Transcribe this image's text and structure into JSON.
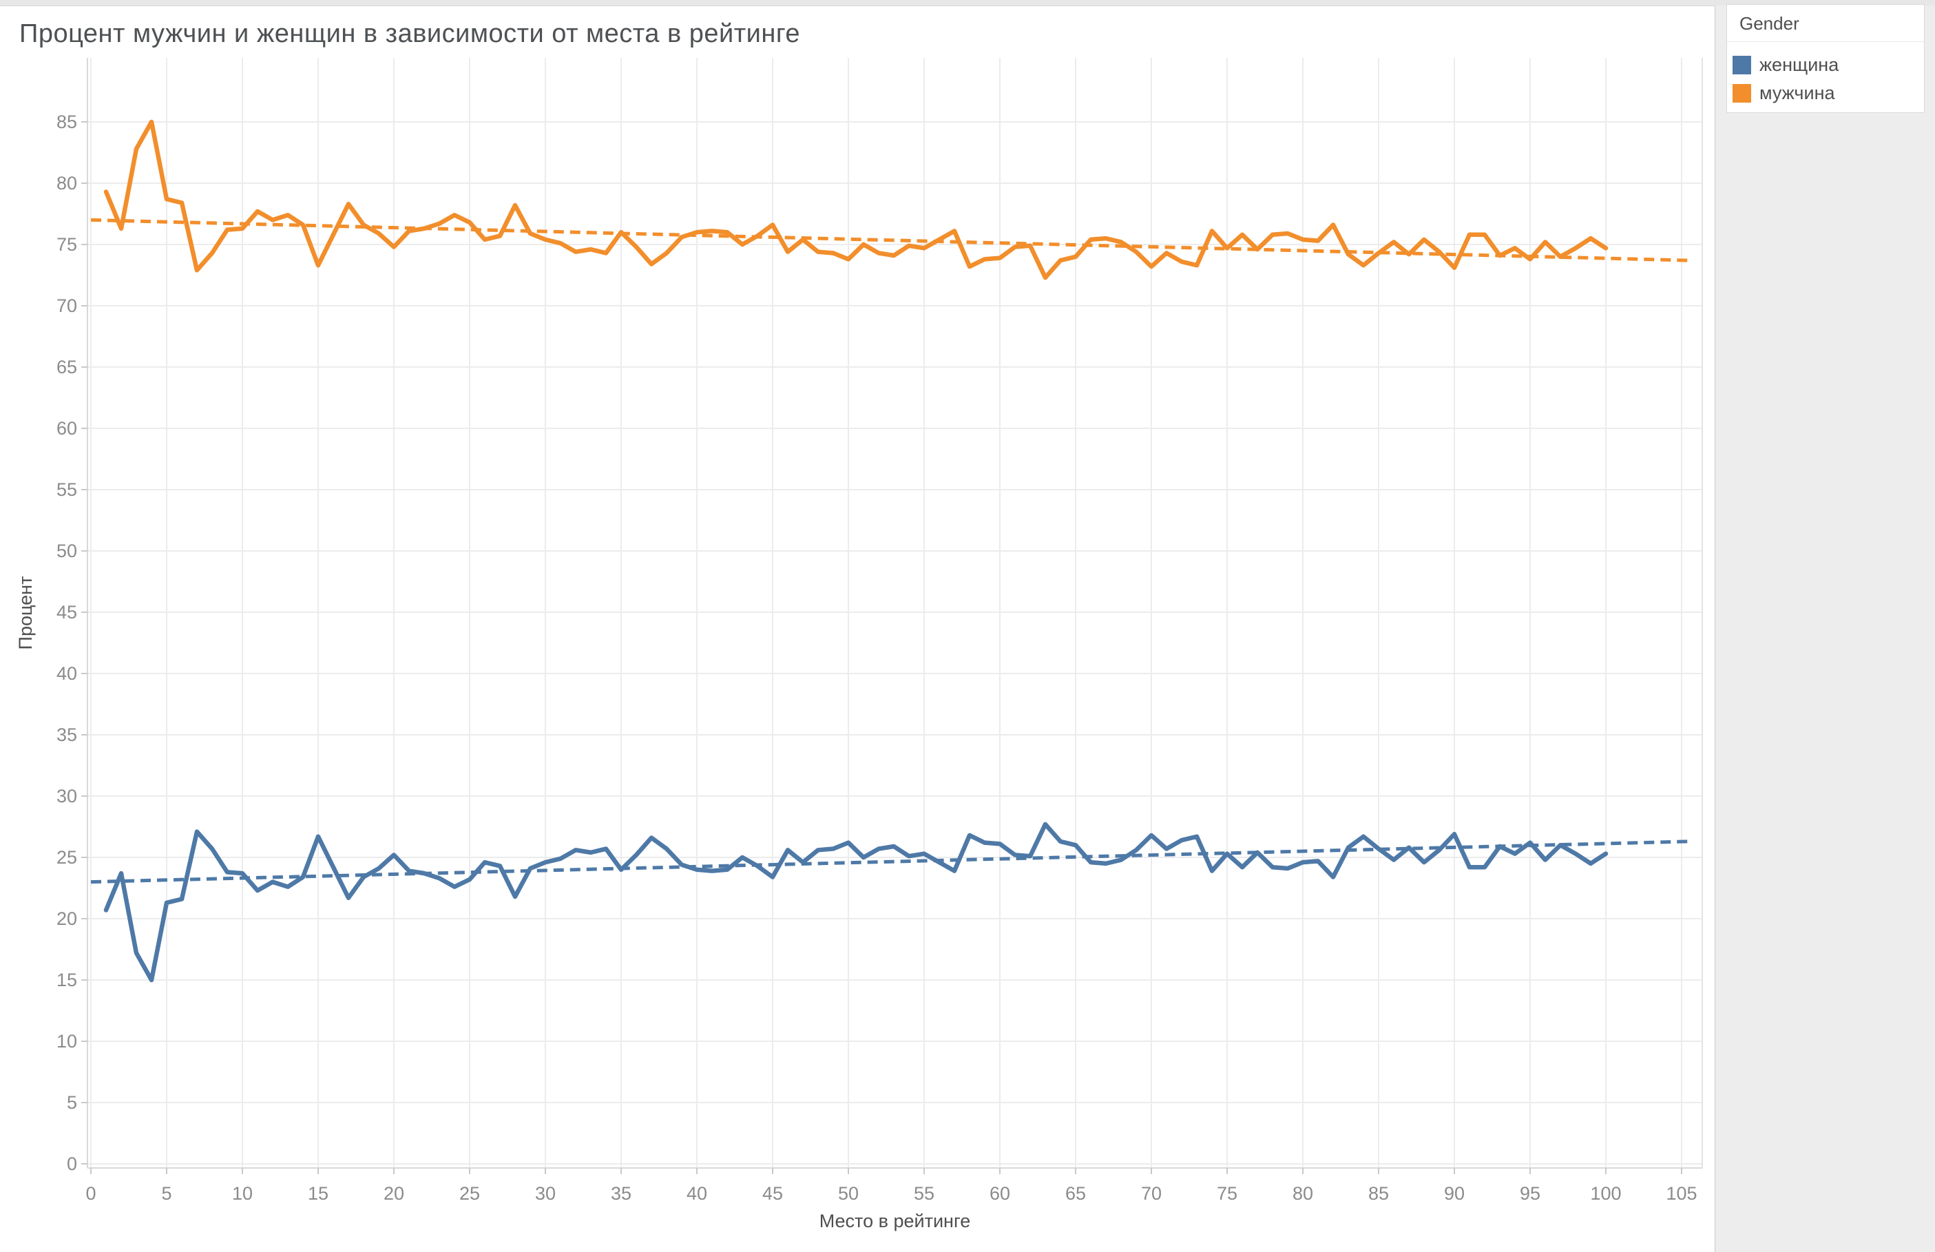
{
  "title": "Процент мужчин и женщин в зависимости от места в рейтинге",
  "legend": {
    "title": "Gender",
    "items": [
      {
        "label": "женщина",
        "color": "#4e79a7"
      },
      {
        "label": "мужчина",
        "color": "#f28e2b"
      }
    ]
  },
  "chart_data": {
    "type": "line",
    "title": "Процент мужчин и женщин в зависимости от места в рейтинге",
    "xlabel": "Место в рейтинге",
    "ylabel": "Процент",
    "grid": true,
    "legend_position": "top-right",
    "x_start": 1,
    "xlim": [
      -0.25,
      106.5
    ],
    "ylim": [
      0,
      90.3
    ],
    "x_ticks": [
      0,
      5,
      10,
      15,
      20,
      25,
      30,
      35,
      40,
      45,
      50,
      55,
      60,
      65,
      70,
      75,
      80,
      85,
      90,
      95,
      100,
      105
    ],
    "y_ticks": [
      0,
      5,
      10,
      15,
      20,
      25,
      30,
      35,
      40,
      45,
      50,
      55,
      60,
      65,
      70,
      75,
      80,
      85
    ],
    "series": [
      {
        "name": "женщина",
        "color": "#4e79a7",
        "values": [
          20.7,
          23.7,
          17.2,
          15.0,
          21.3,
          21.6,
          27.1,
          25.7,
          23.8,
          23.7,
          22.3,
          23.0,
          22.6,
          23.4,
          26.7,
          24.2,
          21.7,
          23.4,
          24.1,
          25.2,
          23.9,
          23.7,
          23.3,
          22.6,
          23.2,
          24.6,
          24.3,
          21.8,
          24.1,
          24.6,
          24.9,
          25.6,
          25.4,
          25.7,
          24.0,
          25.2,
          26.6,
          25.7,
          24.4,
          24.0,
          23.9,
          24.0,
          25.0,
          24.3,
          23.4,
          25.6,
          24.6,
          25.6,
          25.7,
          26.2,
          25.0,
          25.7,
          25.9,
          25.1,
          25.3,
          24.6,
          23.9,
          26.8,
          26.2,
          26.1,
          25.2,
          25.1,
          27.7,
          26.3,
          26.0,
          24.6,
          24.5,
          24.8,
          25.6,
          26.8,
          25.7,
          26.4,
          26.7,
          23.9,
          25.3,
          24.2,
          25.4,
          24.2,
          24.1,
          24.6,
          24.7,
          23.4,
          25.8,
          26.7,
          25.7,
          24.8,
          25.8,
          24.6,
          25.6,
          26.9,
          24.2,
          24.2,
          25.9,
          25.3,
          26.2,
          24.8,
          26.0,
          25.3,
          24.5,
          25.3
        ]
      },
      {
        "name": "мужчина",
        "color": "#f28e2b",
        "values": [
          79.3,
          76.3,
          82.8,
          85.0,
          78.7,
          78.4,
          72.9,
          74.3,
          76.2,
          76.3,
          77.7,
          77.0,
          77.4,
          76.6,
          73.3,
          75.8,
          78.3,
          76.6,
          75.9,
          74.8,
          76.1,
          76.3,
          76.7,
          77.4,
          76.8,
          75.4,
          75.7,
          78.2,
          75.9,
          75.4,
          75.1,
          74.4,
          74.6,
          74.3,
          76.0,
          74.8,
          73.4,
          74.3,
          75.6,
          76.0,
          76.1,
          76.0,
          75.0,
          75.7,
          76.6,
          74.4,
          75.4,
          74.4,
          74.3,
          73.8,
          75.0,
          74.3,
          74.1,
          74.9,
          74.7,
          75.4,
          76.1,
          73.2,
          73.8,
          73.9,
          74.8,
          74.9,
          72.3,
          73.7,
          74.0,
          75.4,
          75.5,
          75.2,
          74.4,
          73.2,
          74.3,
          73.6,
          73.3,
          76.1,
          74.7,
          75.8,
          74.6,
          75.8,
          75.9,
          75.4,
          75.3,
          76.6,
          74.2,
          73.3,
          74.3,
          75.2,
          74.2,
          75.4,
          74.4,
          73.1,
          75.8,
          75.8,
          74.1,
          74.7,
          73.8,
          75.2,
          74.0,
          74.7,
          75.5,
          74.7
        ]
      }
    ],
    "trend_lines": [
      {
        "series": "женщина",
        "color": "#4e79a7",
        "x": [
          0,
          105.5
        ],
        "y": [
          23.0,
          26.3
        ]
      },
      {
        "series": "мужчина",
        "color": "#f28e2b",
        "x": [
          0,
          105.5
        ],
        "y": [
          77.0,
          73.7
        ]
      }
    ]
  }
}
